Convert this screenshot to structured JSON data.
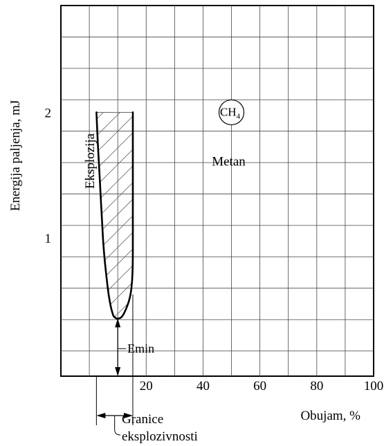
{
  "chart_data": {
    "type": "line",
    "title": "",
    "xlabel": "Obujam, %",
    "ylabel": "Energija paljenja, mJ",
    "xlim": [
      -10,
      100
    ],
    "ylim": [
      -0.1,
      2.85
    ],
    "grid": true,
    "x_ticks": [
      {
        "value": 20,
        "label": "20"
      },
      {
        "value": 40,
        "label": "40"
      },
      {
        "value": 60,
        "label": "60"
      },
      {
        "value": 80,
        "label": "80"
      },
      {
        "value": 100,
        "label": "100"
      }
    ],
    "y_ticks": [
      {
        "value": 1,
        "label": "1"
      },
      {
        "value": 2,
        "label": "2"
      }
    ],
    "series": [
      {
        "x": [
          2.5,
          3.0,
          3.6,
          4.2,
          4.8,
          5.3,
          5.9,
          6.5,
          7.0,
          7.7,
          8.5,
          9.5,
          10.5,
          11.3,
          12.2,
          13.2,
          14.2,
          14.8,
          15.2,
          15.3,
          15.3,
          15.3,
          15.3,
          15.3
        ],
        "y": [
          2.0,
          1.75,
          1.5,
          1.25,
          1.0,
          0.85,
          0.72,
          0.6,
          0.52,
          0.44,
          0.38,
          0.36,
          0.36,
          0.37,
          0.4,
          0.45,
          0.52,
          0.6,
          0.72,
          0.9,
          1.2,
          1.5,
          1.75,
          2.0
        ]
      }
    ],
    "annotations": {
      "region_label": "Eksplozija",
      "gas_symbol": "CH",
      "gas_subscript": "4",
      "gas_name": "Metan",
      "emin_label": "Emin",
      "emin_value": 0.36,
      "limits_label_line1": "Granice",
      "limits_label_line2": "eksplozivnosti",
      "lower_limit": 2.5,
      "upper_limit": 15.3
    },
    "gas_marker": {
      "x": 50,
      "y": 2.0
    }
  }
}
